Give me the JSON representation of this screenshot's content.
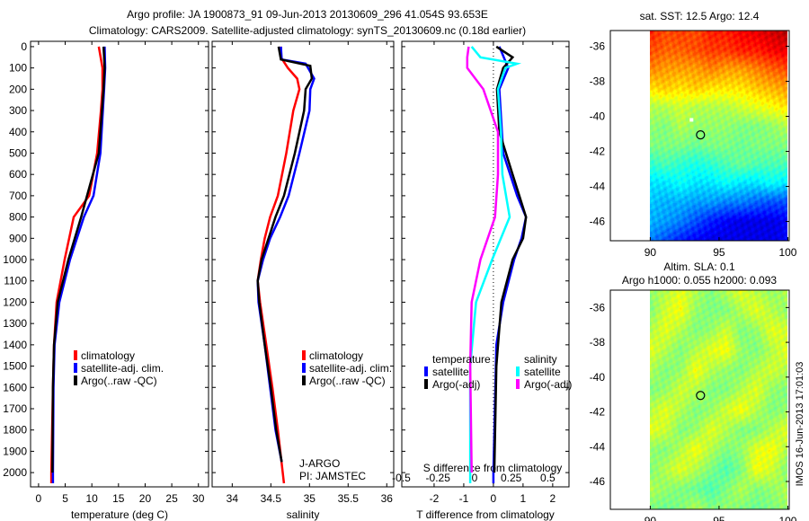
{
  "title_line1": "Argo profile: JA 1900873_91 09-Jun-2013 20130609_296 41.054S 93.653E",
  "title_line2": "Climatology: CARS2009. Satellite-adjusted climatology: synTS_20130609.nc (0.18d earlier)",
  "watermark": "IMOS 16-Jun-2013 17:01:03",
  "colors": {
    "climatology": "#ff0000",
    "satellite": "#0000ff",
    "argo": "#000000",
    "sal_satellite": "#00ffff",
    "sal_argo": "#ff00ff"
  },
  "chart_data": [
    {
      "type": "line",
      "name": "temperature",
      "xlabel": "temperature (deg C)",
      "xlim": [
        -1.5,
        31.9
      ],
      "ylim": [
        2067,
        -25
      ],
      "xticks": [
        0,
        5,
        10,
        15,
        20,
        25,
        30
      ],
      "yticks": [
        0,
        100,
        200,
        300,
        400,
        500,
        600,
        700,
        800,
        900,
        1000,
        1100,
        1200,
        1300,
        1400,
        1500,
        1600,
        1700,
        1800,
        1900,
        2000
      ],
      "legend": [
        "climatology",
        "satellite-adj. clim.",
        "Argo(..raw -QC)"
      ],
      "series": [
        {
          "name": "climatology",
          "color": "#ff0000",
          "depth": [
            0,
            100,
            200,
            300,
            500,
            700,
            800,
            1000,
            1200,
            1400,
            1600,
            2000,
            2050
          ],
          "values": [
            11.3,
            12.0,
            12.0,
            11.7,
            11.0,
            9.5,
            6.6,
            4.9,
            3.4,
            2.9,
            2.7,
            2.4,
            2.4
          ]
        },
        {
          "name": "satellite-adj. clim.",
          "color": "#0000ff",
          "depth": [
            0,
            100,
            200,
            500,
            700,
            800,
            900,
            1000,
            1200,
            1400,
            1600,
            2000,
            2050
          ],
          "values": [
            12.4,
            12.5,
            12.3,
            11.6,
            10.3,
            8.5,
            7.2,
            5.9,
            3.9,
            3.0,
            2.8,
            2.7,
            2.7
          ]
        },
        {
          "name": "Argo(..raw -QC)",
          "color": "#000000",
          "depth": [
            0,
            100,
            200,
            500,
            800,
            1000,
            1200,
            1400,
            1600,
            2000
          ],
          "values": [
            12.2,
            12.4,
            12.2,
            11.3,
            8.0,
            5.6,
            3.6,
            2.9,
            2.7,
            2.6
          ]
        }
      ]
    },
    {
      "type": "line",
      "name": "salinity",
      "xlabel": "salinity",
      "xlim": [
        33.74,
        36.09
      ],
      "ylim": [
        2067,
        -25
      ],
      "xticks": [
        34,
        34.5,
        35,
        35.5,
        36
      ],
      "legend": [
        "climatology",
        "satellite-adj. clim.",
        "Argo(..raw -QC)"
      ],
      "annotation": [
        "J-ARGO",
        "PI: JAMSTEC"
      ],
      "series": [
        {
          "name": "climatology",
          "color": "#ff0000",
          "depth": [
            0,
            50,
            100,
            150,
            200,
            300,
            500,
            700,
            800,
            900,
            1000,
            1100,
            1200,
            1400,
            1600,
            1800,
            2050
          ],
          "values": [
            34.63,
            34.63,
            34.72,
            34.84,
            34.87,
            34.79,
            34.7,
            34.59,
            34.49,
            34.42,
            34.37,
            34.33,
            34.36,
            34.44,
            34.52,
            34.59,
            34.67
          ]
        },
        {
          "name": "satellite-adj. clim.",
          "color": "#0000ff",
          "depth": [
            0,
            60,
            80,
            150,
            200,
            300,
            500,
            700,
            800,
            900,
            1000,
            1100,
            1200,
            1400,
            1600,
            1800,
            1950
          ],
          "values": [
            34.63,
            34.64,
            34.95,
            35.06,
            35.01,
            35.0,
            34.87,
            34.73,
            34.62,
            34.49,
            34.4,
            34.33,
            34.34,
            34.42,
            34.49,
            34.56,
            34.64
          ]
        },
        {
          "name": "Argo(..raw -QC)",
          "color": "#000000",
          "depth": [
            0,
            60,
            90,
            150,
            200,
            300,
            500,
            700,
            800,
            1000,
            1100,
            1200,
            1400,
            1600,
            1800,
            1950
          ],
          "values": [
            34.6,
            34.63,
            35.01,
            35.03,
            34.95,
            34.93,
            34.81,
            34.67,
            34.56,
            34.38,
            34.33,
            34.35,
            34.42,
            34.5,
            34.57,
            34.64
          ]
        }
      ]
    },
    {
      "type": "line",
      "name": "difference",
      "xlabel": "T difference from climatology",
      "xlim": [
        -3.09,
        2.55
      ],
      "xticks": [
        -2,
        -1,
        0,
        1,
        2
      ],
      "x2label": "S difference from climatology",
      "x2lim": [
        -0.497,
        0.645
      ],
      "x2ticks": [
        -0.5,
        -0.25,
        0,
        0.25,
        0.5
      ],
      "x2ticklabels": [
        "-0.5",
        "-0.25",
        "0",
        "0.25",
        "0.5"
      ],
      "ylim": [
        2067,
        -25
      ],
      "legend_temperature": {
        "title": "temperature",
        "items": [
          "satellite",
          "Argo(-adj)"
        ]
      },
      "legend_salinity": {
        "title": "salinity",
        "items": [
          "satellite",
          "Argo(-adj)"
        ]
      },
      "series": [
        {
          "name": "T satellite",
          "axis": "T",
          "color": "#0000ff",
          "depth": [
            0,
            100,
            200,
            500,
            700,
            800,
            900,
            1000,
            1200,
            1400,
            2000,
            2050
          ],
          "values": [
            0.2,
            0.5,
            0.2,
            0.33,
            0.8,
            1.1,
            0.95,
            0.7,
            0.33,
            0.1,
            0.0,
            0.0
          ]
        },
        {
          "name": "T Argo(-adj)",
          "axis": "T",
          "color": "#000000",
          "depth": [
            0,
            50,
            100,
            200,
            400,
            600,
            800,
            900,
            1000,
            1200,
            1500,
            2000
          ],
          "values": [
            0.1,
            0.65,
            0.33,
            0.12,
            0.2,
            0.65,
            1.1,
            1.0,
            0.65,
            0.27,
            0.1,
            0.03
          ]
        },
        {
          "name": "S satellite",
          "axis": "S",
          "color": "#00ffff",
          "depth": [
            0,
            50,
            80,
            100,
            200,
            400,
            600,
            800,
            1000,
            1200,
            1500,
            2000,
            2050
          ],
          "values": [
            -0.02,
            0.04,
            0.29,
            0.21,
            0.16,
            0.18,
            0.19,
            0.24,
            0.12,
            0.01,
            -0.03,
            -0.03,
            -0.03
          ]
        },
        {
          "name": "S Argo(-adj)",
          "axis": "S",
          "color": "#ff00ff",
          "depth": [
            0,
            50,
            100,
            200,
            400,
            600,
            800,
            1000,
            1200,
            1500,
            2000
          ],
          "values": [
            -0.04,
            -0.05,
            -0.05,
            0.06,
            0.16,
            0.16,
            0.14,
            0.04,
            -0.02,
            -0.03,
            -0.02
          ]
        }
      ]
    },
    {
      "type": "heatmap",
      "name": "sst-map",
      "title": "sat. SST: 12.5 Argo: 12.4",
      "xlim": [
        87.1,
        100.1
      ],
      "ylim": [
        -47.1,
        -35.1
      ],
      "xticks": [
        90,
        95,
        100
      ],
      "yticks": [
        -36,
        -38,
        -40,
        -42,
        -44,
        -46
      ],
      "grid_lon": [
        90,
        100
      ],
      "grid_lat": [
        -35.1,
        -47.1
      ],
      "colormap": "jet",
      "values": [
        [
          0.85,
          0.8,
          0.82,
          0.8,
          0.85,
          0.85,
          0.88,
          0.9,
          0.92,
          0.95
        ],
        [
          0.8,
          0.78,
          0.78,
          0.8,
          0.82,
          0.82,
          0.85,
          0.85,
          0.88,
          0.9
        ],
        [
          0.75,
          0.72,
          0.72,
          0.72,
          0.75,
          0.72,
          0.72,
          0.75,
          0.78,
          0.8
        ],
        [
          0.65,
          0.68,
          0.65,
          0.68,
          0.65,
          0.65,
          0.65,
          0.68,
          0.7,
          0.72
        ],
        [
          0.55,
          0.55,
          0.58,
          0.55,
          0.55,
          0.55,
          0.58,
          0.6,
          0.62,
          0.65
        ],
        [
          0.52,
          0.5,
          0.55,
          0.52,
          0.52,
          0.52,
          0.5,
          0.5,
          0.52,
          0.55
        ],
        [
          0.5,
          0.5,
          0.5,
          0.48,
          0.5,
          0.5,
          0.48,
          0.5,
          0.5,
          0.5
        ],
        [
          0.42,
          0.45,
          0.42,
          0.4,
          0.42,
          0.45,
          0.48,
          0.45,
          0.45,
          0.45
        ],
        [
          0.35,
          0.35,
          0.38,
          0.35,
          0.35,
          0.38,
          0.35,
          0.35,
          0.38,
          0.35
        ],
        [
          0.32,
          0.3,
          0.3,
          0.28,
          0.28,
          0.25,
          0.25,
          0.22,
          0.2,
          0.2
        ],
        [
          0.3,
          0.28,
          0.25,
          0.2,
          0.15,
          0.12,
          0.1,
          0.1,
          0.1,
          0.12
        ],
        [
          0.25,
          0.2,
          0.15,
          0.12,
          0.1,
          0.1,
          0.1,
          0.1,
          0.1,
          0.12
        ]
      ],
      "profile_marker": {
        "lon": 93.653,
        "lat": -41.054
      },
      "white_marker": {
        "lon": 93.0,
        "lat": -40.2
      }
    },
    {
      "type": "heatmap",
      "name": "sla-map",
      "title": "Altim. SLA: 0.1",
      "subtitle": "Argo h1000: 0.055 h2000: 0.093",
      "xlim": [
        87.1,
        100.1
      ],
      "ylim": [
        -47.6,
        -35.0
      ],
      "xticks": [
        90,
        95,
        100
      ],
      "yticks": [
        -36,
        -38,
        -40,
        -42,
        -44,
        -46
      ],
      "grid_lon": [
        90,
        100
      ],
      "grid_lat": [
        -35.0,
        -47.6
      ],
      "colormap": "jet",
      "values": [
        [
          0.52,
          0.55,
          0.6,
          0.55,
          0.5,
          0.55,
          0.6,
          0.55,
          0.52,
          0.55
        ],
        [
          0.5,
          0.58,
          0.62,
          0.52,
          0.5,
          0.5,
          0.55,
          0.6,
          0.55,
          0.52
        ],
        [
          0.55,
          0.6,
          0.55,
          0.5,
          0.52,
          0.58,
          0.5,
          0.52,
          0.6,
          0.58
        ],
        [
          0.6,
          0.55,
          0.5,
          0.55,
          0.6,
          0.62,
          0.52,
          0.5,
          0.55,
          0.6
        ],
        [
          0.55,
          0.5,
          0.52,
          0.62,
          0.55,
          0.52,
          0.5,
          0.55,
          0.58,
          0.55
        ],
        [
          0.5,
          0.52,
          0.58,
          0.55,
          0.5,
          0.5,
          0.55,
          0.6,
          0.52,
          0.5
        ],
        [
          0.55,
          0.6,
          0.55,
          0.5,
          0.52,
          0.58,
          0.62,
          0.55,
          0.5,
          0.52
        ],
        [
          0.6,
          0.58,
          0.5,
          0.52,
          0.6,
          0.55,
          0.5,
          0.5,
          0.55,
          0.6
        ],
        [
          0.52,
          0.5,
          0.55,
          0.62,
          0.55,
          0.5,
          0.52,
          0.6,
          0.62,
          0.55
        ],
        [
          0.5,
          0.55,
          0.6,
          0.55,
          0.5,
          0.45,
          0.5,
          0.62,
          0.58,
          0.5
        ],
        [
          0.55,
          0.52,
          0.5,
          0.48,
          0.45,
          0.5,
          0.55,
          0.5,
          0.52,
          0.55
        ],
        [
          0.5,
          0.48,
          0.5,
          0.55,
          0.5,
          0.52,
          0.5,
          0.48,
          0.5,
          0.52
        ]
      ],
      "profile_marker": {
        "lon": 93.653,
        "lat": -41.054
      }
    }
  ]
}
